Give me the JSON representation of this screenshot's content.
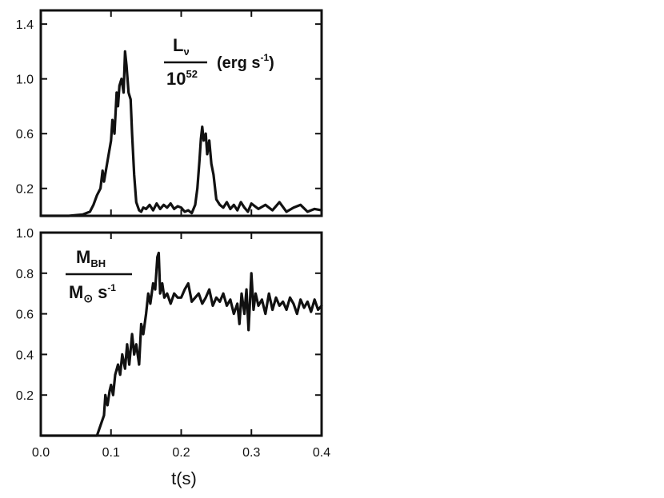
{
  "chart_data": [
    {
      "type": "line",
      "panel": "top",
      "title": "",
      "xlabel": "",
      "ylabel": "",
      "xlim": [
        0.0,
        0.4
      ],
      "ylim": [
        0.0,
        1.5
      ],
      "yticks": [
        "0.2",
        "0.6",
        "1.0",
        "1.4"
      ],
      "ytick_values": [
        0.2,
        0.6,
        1.0,
        1.4
      ],
      "annotation": {
        "numerator": "L",
        "numerator_sub": "ν",
        "denominator": "10",
        "denominator_sup": "52",
        "unit": "(erg s",
        "unit_sup": "-1",
        "unit_close": ")"
      },
      "series": [
        {
          "x": [
            0.0,
            0.04,
            0.06,
            0.07,
            0.075,
            0.08,
            0.085,
            0.088,
            0.09,
            0.095,
            0.1,
            0.102,
            0.105,
            0.108,
            0.11,
            0.112,
            0.115,
            0.118,
            0.12,
            0.122,
            0.125,
            0.128,
            0.13,
            0.133,
            0.136,
            0.14,
            0.143,
            0.146,
            0.15,
            0.155,
            0.16,
            0.165,
            0.17,
            0.175,
            0.18,
            0.185,
            0.19,
            0.195,
            0.2,
            0.205,
            0.21,
            0.215,
            0.22,
            0.223,
            0.226,
            0.228,
            0.23,
            0.232,
            0.235,
            0.237,
            0.24,
            0.243,
            0.246,
            0.25,
            0.255,
            0.26,
            0.265,
            0.27,
            0.275,
            0.28,
            0.285,
            0.29,
            0.295,
            0.3,
            0.31,
            0.32,
            0.33,
            0.34,
            0.35,
            0.36,
            0.37,
            0.38,
            0.39,
            0.4
          ],
          "y": [
            0.0,
            0.0,
            0.01,
            0.03,
            0.08,
            0.15,
            0.2,
            0.33,
            0.25,
            0.4,
            0.55,
            0.7,
            0.6,
            0.9,
            0.8,
            0.95,
            1.0,
            0.9,
            1.2,
            1.1,
            0.9,
            0.85,
            0.6,
            0.3,
            0.1,
            0.04,
            0.03,
            0.06,
            0.05,
            0.08,
            0.04,
            0.09,
            0.05,
            0.08,
            0.06,
            0.09,
            0.05,
            0.07,
            0.06,
            0.03,
            0.04,
            0.02,
            0.08,
            0.2,
            0.4,
            0.56,
            0.65,
            0.55,
            0.6,
            0.45,
            0.55,
            0.38,
            0.3,
            0.12,
            0.08,
            0.06,
            0.1,
            0.05,
            0.08,
            0.04,
            0.1,
            0.06,
            0.03,
            0.09,
            0.05,
            0.08,
            0.04,
            0.1,
            0.03,
            0.06,
            0.08,
            0.03,
            0.05,
            0.04
          ]
        }
      ]
    },
    {
      "type": "line",
      "panel": "bottom",
      "title": "",
      "xlabel": "t(s)",
      "ylabel": "",
      "xlim": [
        0.0,
        0.4
      ],
      "ylim": [
        0.0,
        1.0
      ],
      "yticks": [
        "0.2",
        "0.4",
        "0.6",
        "0.8",
        "1.0"
      ],
      "ytick_values": [
        0.2,
        0.4,
        0.6,
        0.8,
        1.0
      ],
      "xticks": [
        "0.0",
        "0.1",
        "0.2",
        "0.3",
        "0.4"
      ],
      "xtick_values": [
        0.0,
        0.1,
        0.2,
        0.3,
        0.4
      ],
      "annotation": {
        "numerator": "M",
        "numerator_sub": "BH",
        "denominator": "M",
        "denominator_sub": "⊙",
        "unit": "s",
        "unit_sup": "-1"
      },
      "series": [
        {
          "x": [
            0.0,
            0.08,
            0.085,
            0.09,
            0.092,
            0.095,
            0.098,
            0.1,
            0.103,
            0.106,
            0.11,
            0.113,
            0.116,
            0.12,
            0.123,
            0.126,
            0.13,
            0.133,
            0.136,
            0.14,
            0.143,
            0.146,
            0.15,
            0.153,
            0.156,
            0.16,
            0.163,
            0.166,
            0.168,
            0.17,
            0.173,
            0.176,
            0.18,
            0.185,
            0.19,
            0.195,
            0.2,
            0.205,
            0.21,
            0.215,
            0.22,
            0.225,
            0.23,
            0.235,
            0.24,
            0.245,
            0.25,
            0.255,
            0.26,
            0.265,
            0.27,
            0.275,
            0.28,
            0.283,
            0.286,
            0.29,
            0.293,
            0.296,
            0.3,
            0.303,
            0.306,
            0.31,
            0.315,
            0.32,
            0.325,
            0.33,
            0.335,
            0.34,
            0.345,
            0.35,
            0.355,
            0.36,
            0.365,
            0.37,
            0.375,
            0.38,
            0.385,
            0.39,
            0.395,
            0.4
          ],
          "y": [
            0.0,
            0.0,
            0.05,
            0.1,
            0.2,
            0.15,
            0.22,
            0.25,
            0.2,
            0.3,
            0.35,
            0.3,
            0.4,
            0.33,
            0.45,
            0.35,
            0.5,
            0.4,
            0.45,
            0.35,
            0.55,
            0.5,
            0.6,
            0.7,
            0.65,
            0.75,
            0.72,
            0.88,
            0.9,
            0.7,
            0.75,
            0.68,
            0.7,
            0.65,
            0.7,
            0.68,
            0.68,
            0.72,
            0.75,
            0.66,
            0.68,
            0.7,
            0.65,
            0.68,
            0.72,
            0.64,
            0.68,
            0.66,
            0.7,
            0.64,
            0.67,
            0.6,
            0.65,
            0.55,
            0.7,
            0.6,
            0.72,
            0.52,
            0.8,
            0.62,
            0.7,
            0.64,
            0.67,
            0.6,
            0.7,
            0.62,
            0.68,
            0.64,
            0.66,
            0.62,
            0.68,
            0.65,
            0.6,
            0.67,
            0.63,
            0.66,
            0.61,
            0.67,
            0.62,
            0.64
          ]
        }
      ]
    }
  ]
}
